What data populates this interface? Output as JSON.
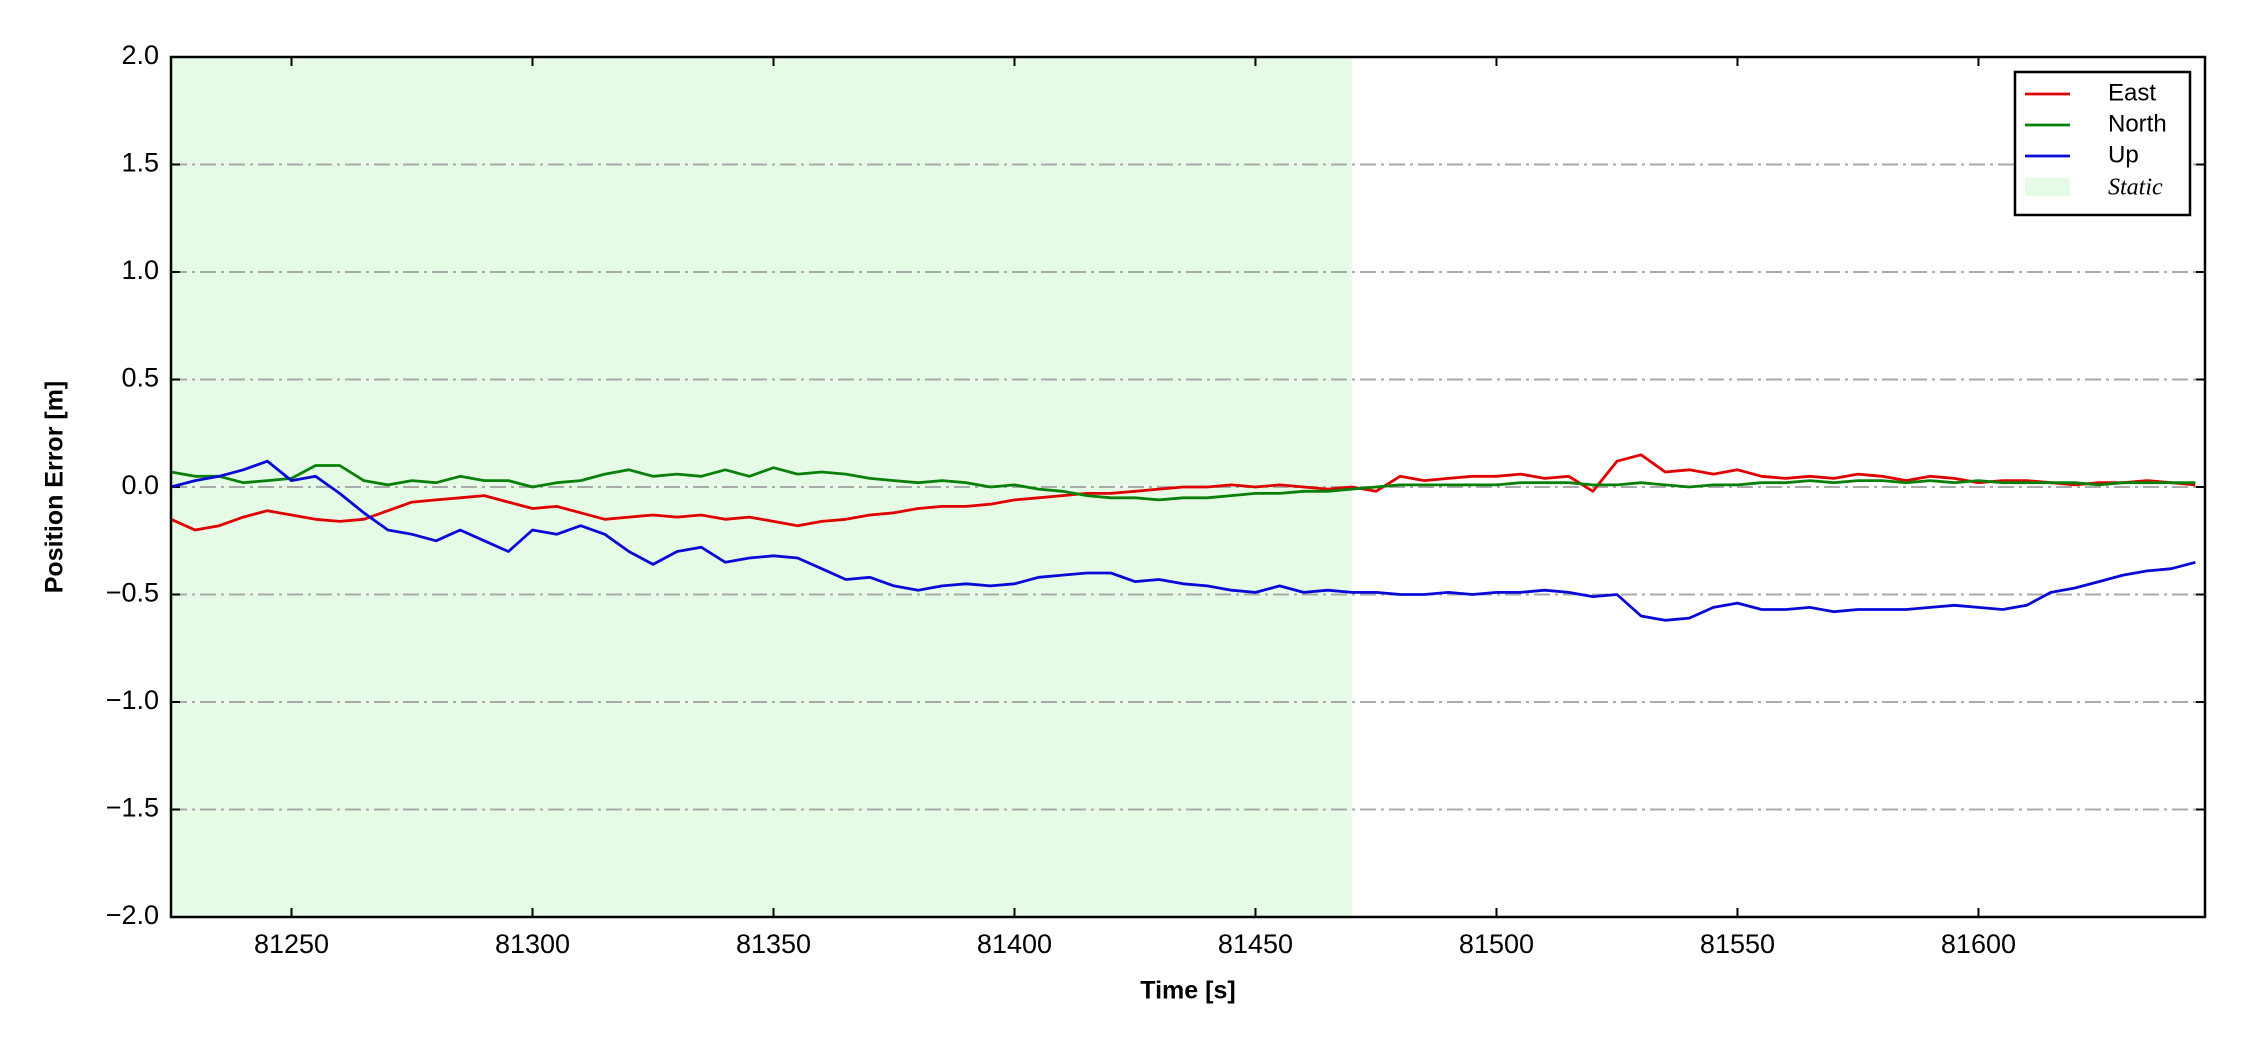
{
  "chart_data": {
    "type": "line",
    "xlabel": "Time [s]",
    "ylabel": "Position Error [m]",
    "x": [
      81225,
      81230,
      81235,
      81240,
      81245,
      81250,
      81255,
      81260,
      81265,
      81270,
      81275,
      81280,
      81285,
      81290,
      81295,
      81300,
      81305,
      81310,
      81315,
      81320,
      81325,
      81330,
      81335,
      81340,
      81345,
      81350,
      81355,
      81360,
      81365,
      81370,
      81375,
      81380,
      81385,
      81390,
      81395,
      81400,
      81405,
      81410,
      81415,
      81420,
      81425,
      81430,
      81435,
      81440,
      81445,
      81450,
      81455,
      81460,
      81465,
      81470,
      81475,
      81480,
      81485,
      81490,
      81495,
      81500,
      81505,
      81510,
      81515,
      81520,
      81525,
      81530,
      81535,
      81540,
      81545,
      81550,
      81555,
      81560,
      81565,
      81570,
      81575,
      81580,
      81585,
      81590,
      81595,
      81600,
      81605,
      81610,
      81615,
      81620,
      81625,
      81630,
      81635,
      81640,
      81645
    ],
    "series": [
      {
        "name": "East",
        "color": "#e00000",
        "values": [
          -0.15,
          -0.2,
          -0.18,
          -0.14,
          -0.11,
          -0.13,
          -0.15,
          -0.16,
          -0.15,
          -0.11,
          -0.07,
          -0.06,
          -0.05,
          -0.04,
          -0.07,
          -0.1,
          -0.09,
          -0.12,
          -0.15,
          -0.14,
          -0.13,
          -0.14,
          -0.13,
          -0.15,
          -0.14,
          -0.16,
          -0.18,
          -0.16,
          -0.15,
          -0.13,
          -0.12,
          -0.1,
          -0.09,
          -0.09,
          -0.08,
          -0.06,
          -0.05,
          -0.04,
          -0.03,
          -0.03,
          -0.02,
          -0.01,
          0,
          0,
          0.01,
          0,
          0.01,
          0,
          -0.01,
          0,
          -0.02,
          0.05,
          0.03,
          0.04,
          0.05,
          0.05,
          0.06,
          0.04,
          0.05,
          -0.02,
          0.12,
          0.15,
          0.07,
          0.08,
          0.06,
          0.08,
          0.05,
          0.04,
          0.05,
          0.04,
          0.06,
          0.05,
          0.03,
          0.05,
          0.04,
          0.02,
          0.03,
          0.03,
          0.02,
          0.01,
          0.02,
          0.02,
          0.03,
          0.02,
          0.01
        ]
      },
      {
        "name": "North",
        "color": "#0a800a",
        "values": [
          0.07,
          0.05,
          0.05,
          0.02,
          0.03,
          0.04,
          0.1,
          0.1,
          0.03,
          0.01,
          0.03,
          0.02,
          0.05,
          0.03,
          0.03,
          0,
          0.02,
          0.03,
          0.06,
          0.08,
          0.05,
          0.06,
          0.05,
          0.08,
          0.05,
          0.09,
          0.06,
          0.07,
          0.06,
          0.04,
          0.03,
          0.02,
          0.03,
          0.02,
          0,
          0.01,
          -0.01,
          -0.02,
          -0.04,
          -0.05,
          -0.05,
          -0.06,
          -0.05,
          -0.05,
          -0.04,
          -0.03,
          -0.03,
          -0.02,
          -0.02,
          -0.01,
          0,
          0.01,
          0.01,
          0.01,
          0.01,
          0.01,
          0.02,
          0.02,
          0.02,
          0.01,
          0.01,
          0.02,
          0.01,
          0,
          0.01,
          0.01,
          0.02,
          0.02,
          0.03,
          0.02,
          0.03,
          0.03,
          0.02,
          0.03,
          0.02,
          0.03,
          0.02,
          0.02,
          0.02,
          0.02,
          0.01,
          0.02,
          0.02,
          0.02,
          0.02
        ]
      },
      {
        "name": "Up",
        "color": "#0a0ad8",
        "values": [
          0,
          0.03,
          0.05,
          0.08,
          0.12,
          0.03,
          0.05,
          -0.03,
          -0.12,
          -0.2,
          -0.22,
          -0.25,
          -0.2,
          -0.25,
          -0.3,
          -0.2,
          -0.22,
          -0.18,
          -0.22,
          -0.3,
          -0.36,
          -0.3,
          -0.28,
          -0.35,
          -0.33,
          -0.32,
          -0.33,
          -0.38,
          -0.43,
          -0.42,
          -0.46,
          -0.48,
          -0.46,
          -0.45,
          -0.46,
          -0.45,
          -0.42,
          -0.41,
          -0.4,
          -0.4,
          -0.44,
          -0.43,
          -0.45,
          -0.46,
          -0.48,
          -0.49,
          -0.46,
          -0.49,
          -0.48,
          -0.49,
          -0.49,
          -0.5,
          -0.5,
          -0.49,
          -0.5,
          -0.49,
          -0.49,
          -0.48,
          -0.49,
          -0.51,
          -0.5,
          -0.6,
          -0.62,
          -0.61,
          -0.56,
          -0.54,
          -0.57,
          -0.57,
          -0.56,
          -0.58,
          -0.57,
          -0.57,
          -0.57,
          -0.56,
          -0.55,
          -0.56,
          -0.57,
          -0.55,
          -0.49,
          -0.47,
          -0.44,
          -0.41,
          -0.39,
          -0.38,
          -0.35
        ]
      }
    ],
    "shaded_region": {
      "label": "Static",
      "start": 81225,
      "end": 81470,
      "color": "#e6fbe6"
    },
    "xlim": [
      81225,
      81647
    ],
    "ylim": [
      -2,
      2
    ],
    "xticks": [
      81250,
      81300,
      81350,
      81400,
      81450,
      81500,
      81550,
      81600
    ],
    "yticks": [
      {
        "value": -2,
        "label": "−2.0"
      },
      {
        "value": -1.5,
        "label": "−1.5"
      },
      {
        "value": -1,
        "label": "−1.0"
      },
      {
        "value": -0.5,
        "label": "−0.5"
      },
      {
        "value": 0,
        "label": "0.0"
      },
      {
        "value": 0.5,
        "label": "0.5"
      },
      {
        "value": 1,
        "label": "1.0"
      },
      {
        "value": 1.5,
        "label": "1.5"
      },
      {
        "value": 2,
        "label": "2.0"
      }
    ],
    "grid": true,
    "legend": "upper right"
  }
}
